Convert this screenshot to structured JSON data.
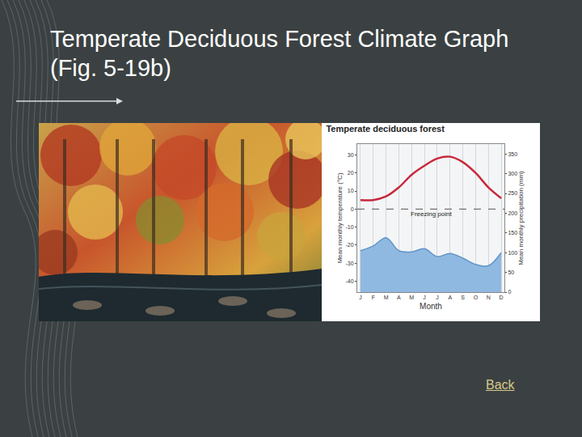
{
  "slide": {
    "title": "Temperate Deciduous Forest Climate Graph (Fig. 5-19b)",
    "link": "Back"
  },
  "chart_data": {
    "type": "line",
    "title": "Temperate deciduous forest",
    "categories": [
      "J",
      "F",
      "M",
      "A",
      "M",
      "J",
      "J",
      "A",
      "S",
      "O",
      "N",
      "D"
    ],
    "x_label": "Month",
    "y_label": "Mean monthly temperature (°C)",
    "y2_label": "Mean monthly precipitation (mm)",
    "series": [
      {
        "type": "area",
        "axis": "y2",
        "color": "#8fb9e1",
        "values": [
          105,
          117,
          138,
          105,
          102,
          110,
          90,
          98,
          86,
          70,
          67,
          100
        ]
      },
      {
        "type": "line",
        "color": "#c8283c",
        "values": [
          5,
          5,
          7,
          12,
          19,
          24,
          28,
          29,
          26,
          20,
          12,
          6
        ]
      }
    ],
    "ylim": [
      -46,
      36
    ],
    "yticks": [
      -40,
      -30,
      -20,
      -10,
      0,
      10,
      20,
      30
    ],
    "y2lim": [
      0,
      375
    ],
    "y2ticks": [
      0,
      50,
      100,
      150,
      200,
      250,
      300,
      350
    ],
    "annotations": [
      {
        "text": "Freezing point",
        "y": 0
      }
    ],
    "grid": true
  }
}
